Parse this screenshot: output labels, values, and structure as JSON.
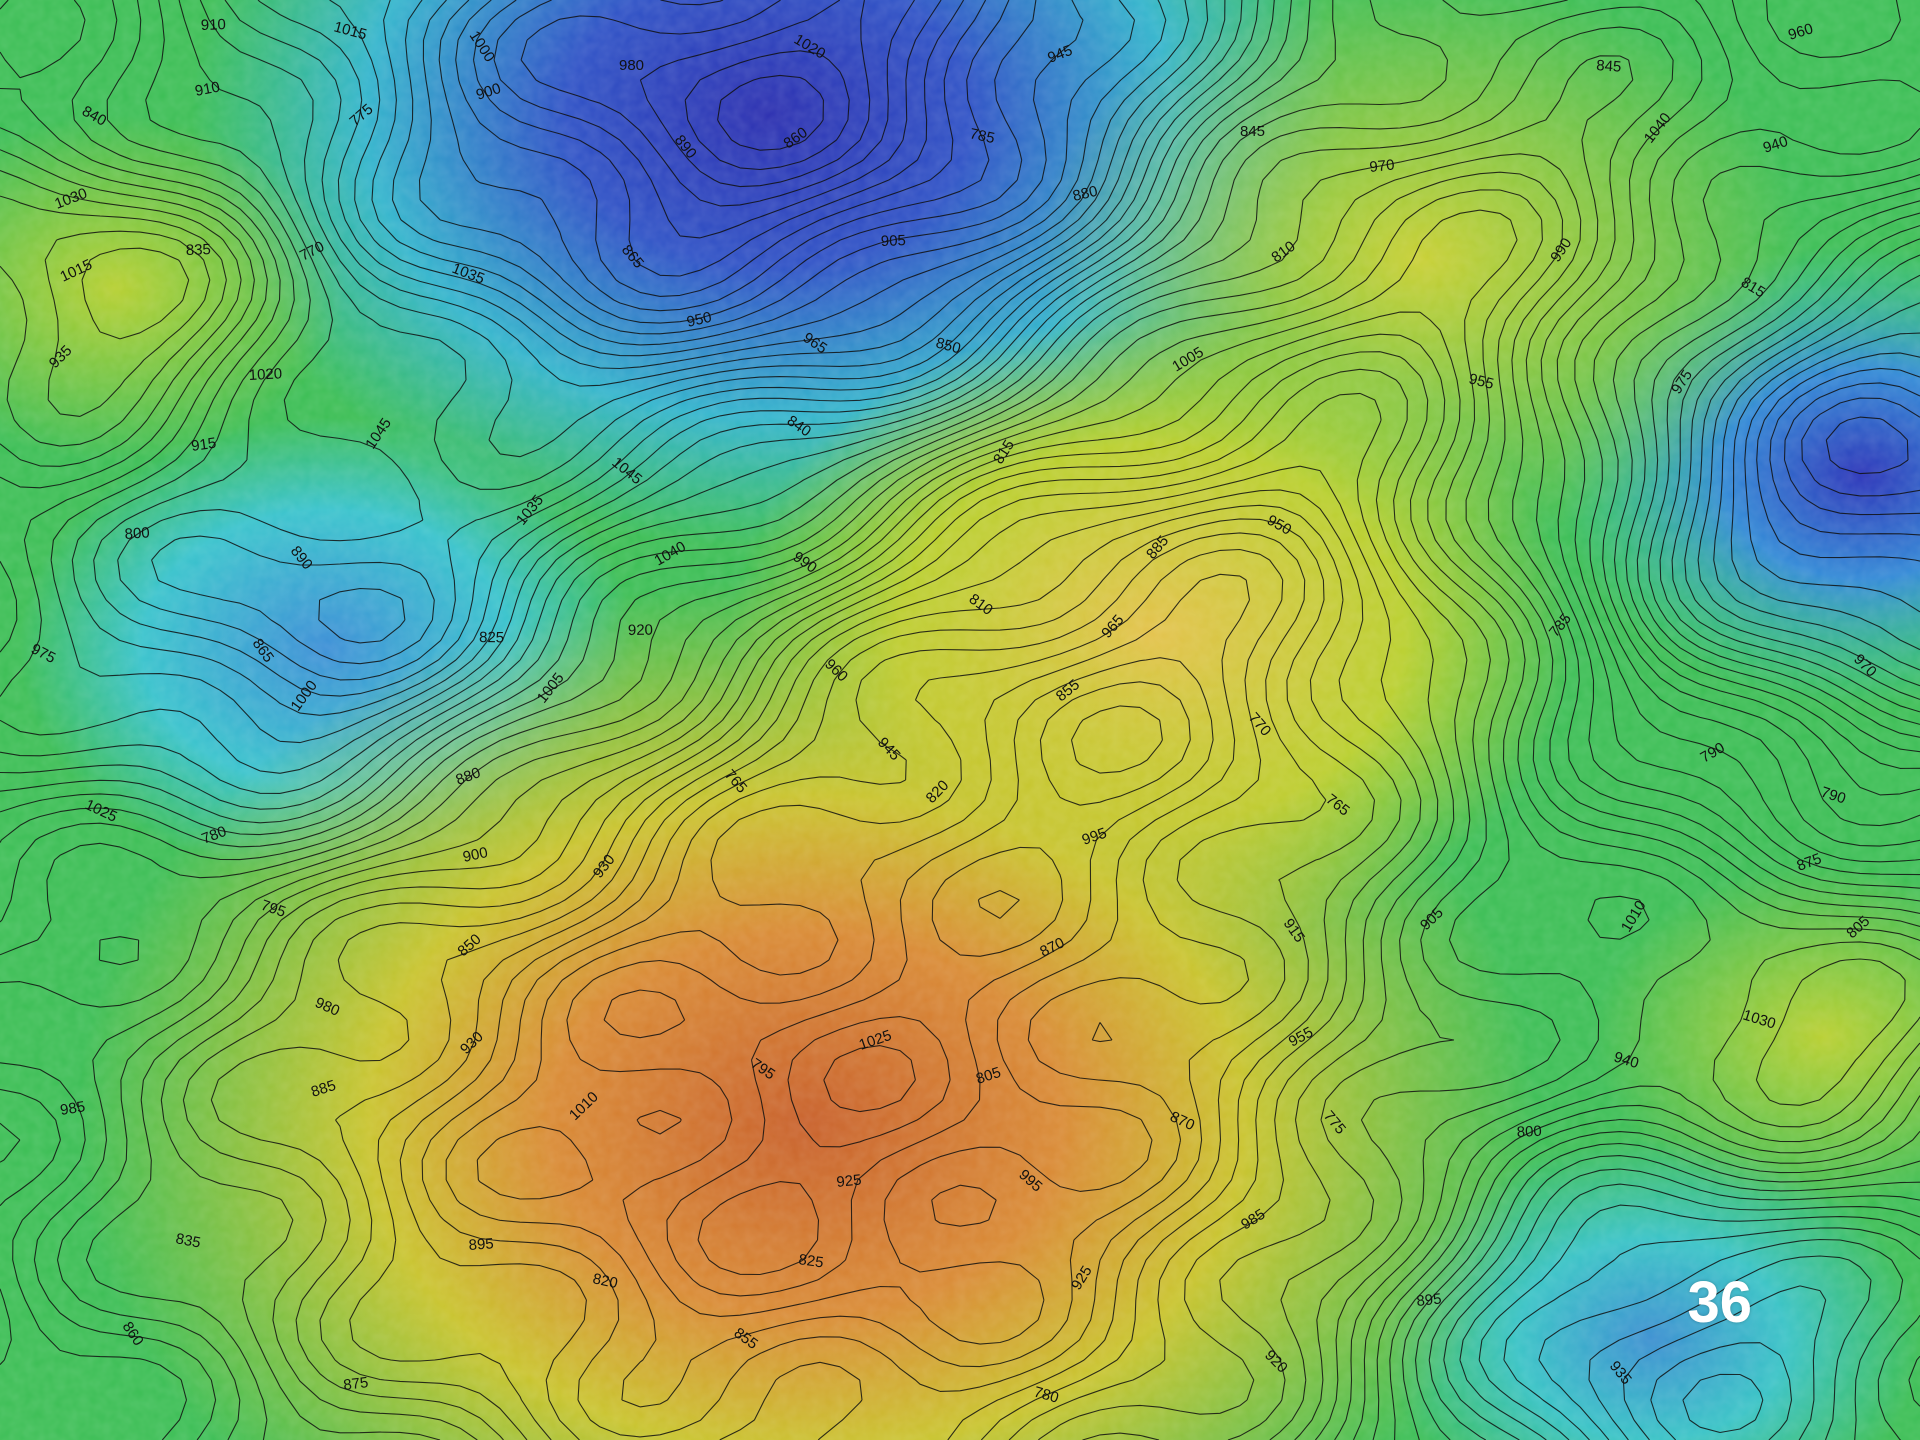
{
  "slide": {
    "page_number": "36"
  },
  "map": {
    "type": "topographic contour relief map",
    "color_ramp": [
      "#2a2fb0",
      "#2f6fd6",
      "#35c3c8",
      "#2fb45a",
      "#6cc72a",
      "#c6cf2a",
      "#e2b23a",
      "#d97a2a",
      "#c8602a"
    ],
    "contour_color": "#111111",
    "contour_labels": [
      "820",
      "825",
      "835",
      "840",
      "845",
      "850",
      "855",
      "860",
      "865",
      "870",
      "875",
      "880",
      "885",
      "890",
      "895",
      "900",
      "905",
      "910",
      "915",
      "920",
      "925",
      "930",
      "935",
      "940",
      "945",
      "950",
      "955",
      "960",
      "965",
      "970",
      "975",
      "980",
      "985",
      "990",
      "995",
      "1000",
      "1005",
      "1010",
      "1015",
      "1020",
      "1025",
      "1030",
      "1035",
      "1040",
      "1045",
      "765",
      "770",
      "775",
      "780",
      "785",
      "790",
      "795",
      "800",
      "805",
      "810",
      "815"
    ]
  }
}
